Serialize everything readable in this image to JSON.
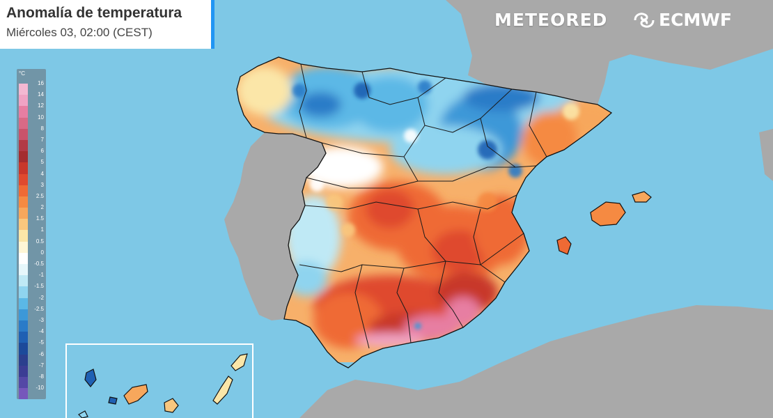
{
  "header": {
    "title": "Anomalía de temperatura",
    "subtitle": "Miércoles 03, 02:00 (CEST)"
  },
  "brand": {
    "meteored": "METEORED",
    "ecmwf": "ECMWF"
  },
  "legend": {
    "unit": "°C",
    "items": [
      {
        "label": "16",
        "color": "#f4b8d2"
      },
      {
        "label": "14",
        "color": "#f0a3c4"
      },
      {
        "label": "12",
        "color": "#e77ea2"
      },
      {
        "label": "10",
        "color": "#d96a86"
      },
      {
        "label": "8",
        "color": "#c9536b"
      },
      {
        "label": "7",
        "color": "#b23a45"
      },
      {
        "label": "6",
        "color": "#a42c2f"
      },
      {
        "label": "5",
        "color": "#c8372b"
      },
      {
        "label": "4",
        "color": "#df4a2e"
      },
      {
        "label": "3",
        "color": "#ef6a34"
      },
      {
        "label": "2.5",
        "color": "#f58a42"
      },
      {
        "label": "2",
        "color": "#f7a75c"
      },
      {
        "label": "1.5",
        "color": "#f9c77e"
      },
      {
        "label": "1",
        "color": "#fbe6a8"
      },
      {
        "label": "0.5",
        "color": "#fff6d6"
      },
      {
        "label": "0",
        "color": "#ffffff"
      },
      {
        "label": "-0.5",
        "color": "#e6f7fb"
      },
      {
        "label": "-1",
        "color": "#bfe9f5"
      },
      {
        "label": "-1.5",
        "color": "#8fd4ef"
      },
      {
        "label": "-2",
        "color": "#5bb8e6"
      },
      {
        "label": "-2.5",
        "color": "#3c98d8"
      },
      {
        "label": "-3",
        "color": "#2a7bc8"
      },
      {
        "label": "-4",
        "color": "#1f60b3"
      },
      {
        "label": "-5",
        "color": "#1c4a9a"
      },
      {
        "label": "-6",
        "color": "#2b3f8e"
      },
      {
        "label": "-7",
        "color": "#3b3d94"
      },
      {
        "label": "-8",
        "color": "#5448a6"
      },
      {
        "label": "-10",
        "color": "#7657bb"
      }
    ]
  },
  "colors": {
    "sea": "#7ec8e6",
    "land_other": "#a7a7a7",
    "accent": "#2196f3",
    "cold": "#2a7bc8",
    "warm": "#e8572d",
    "hot": "#e77ea2"
  }
}
